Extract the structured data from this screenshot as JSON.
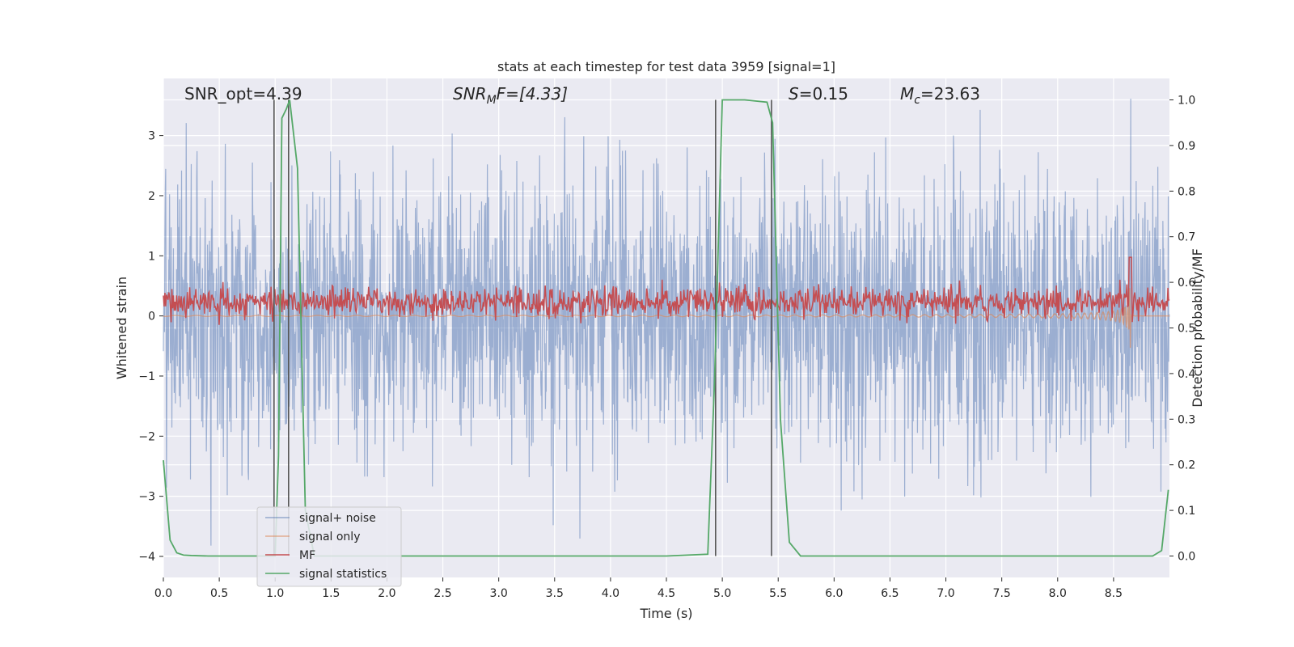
{
  "chart_data": {
    "type": "line",
    "title": "stats at each timestep for test data 3959 [signal=1]",
    "xlabel": "Time (s)",
    "ylabel_left": "Whitened strain",
    "ylabel_right": "Detection probability/MF",
    "xlim": [
      0.0,
      9.0
    ],
    "ylim_left": [
      -4.35,
      3.95
    ],
    "ylim_right": [
      -0.047,
      1.047
    ],
    "x_ticks": [
      "0.0",
      "0.5",
      "1.0",
      "1.5",
      "2.0",
      "2.5",
      "3.0",
      "3.5",
      "4.0",
      "4.5",
      "5.0",
      "5.5",
      "6.0",
      "6.5",
      "7.0",
      "7.5",
      "8.0",
      "8.5"
    ],
    "y_ticks_left": [
      "−4",
      "−3",
      "−2",
      "−1",
      "0",
      "1",
      "2",
      "3"
    ],
    "y_ticks_right": [
      "0.0",
      "0.1",
      "0.2",
      "0.3",
      "0.4",
      "0.5",
      "0.6",
      "0.7",
      "0.8",
      "0.9",
      "1.0"
    ],
    "grid": true,
    "legend_placement": "lower-left",
    "colors": {
      "background": "#eaeaf2",
      "noise": "#4c72b0",
      "signal": "#dd8452",
      "mf": "#c44e52",
      "statistic": "#55a868",
      "vline": "#555555"
    },
    "annotations": {
      "snr_opt": "SNR_opt=4.39",
      "snr_mf_main": "SNR",
      "snr_mf_sub": "M",
      "snr_mf_rest": "F=[4.33]",
      "s_main": "S",
      "s_rest": "=0.15",
      "mc_main": "M",
      "mc_sub": "c",
      "mc_rest": "=23.63"
    },
    "series": [
      {
        "name": "signal+ noise",
        "summary": "whitened noise, amplitude about ±3.5"
      },
      {
        "name": "signal only",
        "summary": "near zero, chirp growing to about ±0.8 near 8.65 s"
      },
      {
        "name": "MF",
        "summary": "matched filter output, about 0.51–0.61 on right axis, peak 0.66 near 8.65 s"
      },
      {
        "name": "signal statistics",
        "x": [
          0.0,
          0.06,
          0.12,
          0.18,
          0.25,
          0.4,
          0.6,
          0.9,
          1.0,
          1.03,
          1.06,
          1.1,
          1.13,
          1.2,
          1.27,
          1.35,
          1.5,
          2.0,
          3.0,
          4.0,
          4.5,
          4.87,
          4.93,
          5.0,
          5.2,
          5.4,
          5.45,
          5.52,
          5.6,
          5.7,
          6.0,
          7.0,
          8.0,
          8.5,
          8.85,
          8.93,
          8.99
        ],
        "y": [
          0.21,
          0.035,
          0.007,
          0.002,
          0.001,
          0.0,
          0.0,
          0.0,
          0.0,
          0.22,
          0.96,
          0.98,
          1.0,
          0.85,
          0.1,
          0.0,
          0.0,
          0.0,
          0.0,
          0.0,
          0.0,
          0.004,
          0.38,
          1.0,
          1.0,
          0.995,
          0.95,
          0.3,
          0.03,
          0.0,
          0.0,
          0.0,
          0.0,
          0.0,
          0.0,
          0.012,
          0.145
        ]
      }
    ],
    "vlines": [
      0.99,
      1.12,
      4.94,
      5.44
    ]
  }
}
